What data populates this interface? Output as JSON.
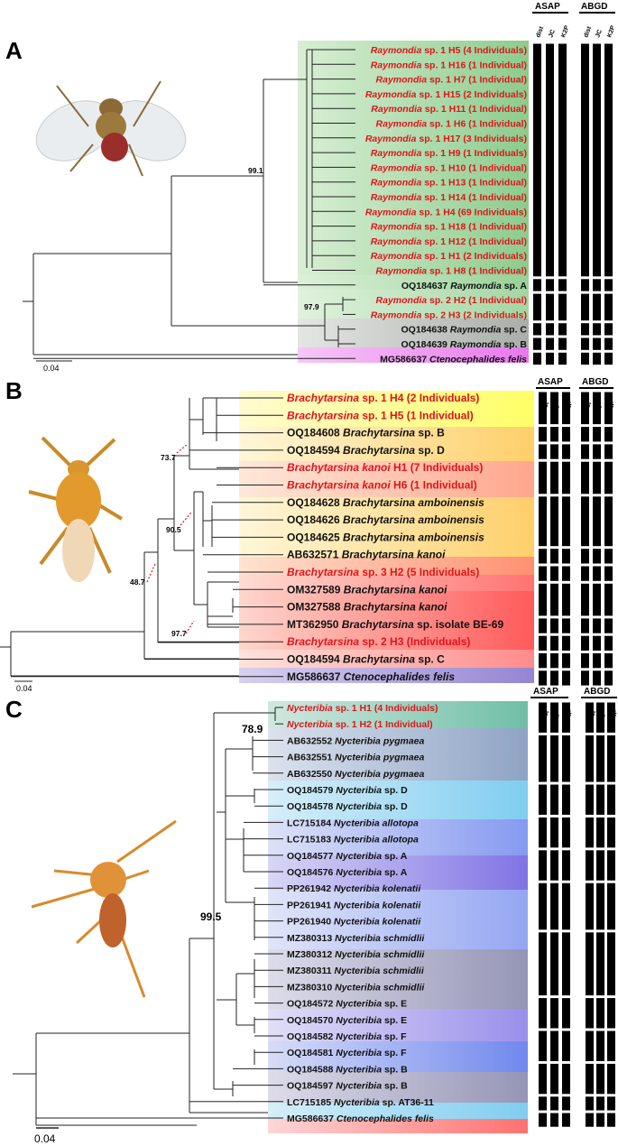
{
  "panels": [
    {
      "id": "A",
      "label": "A",
      "image_name": "raymondia-specimen",
      "method_headers": [
        "ASAP",
        "ABGD"
      ],
      "asap_subheaders": [
        "dist",
        "JC",
        "K2P"
      ],
      "abgd_subheaders": [
        "dist",
        "JC",
        "K2P"
      ],
      "scale_label": "0.04",
      "bootstrap": [
        "99.1",
        "97.9"
      ],
      "tips": [
        {
          "acc": "",
          "genus": "Raymondia",
          "rest": "sp. 1 H5 (4 Individuals)",
          "red": true,
          "italic_all": false
        },
        {
          "acc": "",
          "genus": "Raymondia",
          "rest": "sp. 1 H16 (1 Individual)",
          "red": true,
          "italic_all": false
        },
        {
          "acc": "",
          "genus": "Raymondia",
          "rest": "sp. 1 H7 (1 Individual)",
          "red": true,
          "italic_all": false
        },
        {
          "acc": "",
          "genus": "Raymondia",
          "rest": "sp. 1 H15 (2 Individuals)",
          "red": true,
          "italic_all": false
        },
        {
          "acc": "",
          "genus": "Raymondia",
          "rest": "sp. 1 H11 (1 Individual)",
          "red": true,
          "italic_all": false
        },
        {
          "acc": "",
          "genus": "Raymondia",
          "rest": "sp. 1 H6 (1 Individual)",
          "red": true,
          "italic_all": false
        },
        {
          "acc": "",
          "genus": "Raymondia",
          "rest": "sp. 1 H17 (3 Individuals)",
          "red": true,
          "italic_all": false
        },
        {
          "acc": "",
          "genus": "Raymondia",
          "rest": "sp. 1 H9 (1 Individuals)",
          "red": true,
          "italic_all": false
        },
        {
          "acc": "",
          "genus": "Raymondia",
          "rest": "sp. 1 H10 (1 Individual)",
          "red": true,
          "italic_all": false
        },
        {
          "acc": "",
          "genus": "Raymondia",
          "rest": "sp. 1 H13 (1 Individual)",
          "red": true,
          "italic_all": false
        },
        {
          "acc": "",
          "genus": "Raymondia",
          "rest": "sp. 1 H14 (1 Individual)",
          "red": true,
          "italic_all": false
        },
        {
          "acc": "",
          "genus": "Raymondia",
          "rest": "sp. 1 H4 (69 Individuals)",
          "red": true,
          "italic_all": false
        },
        {
          "acc": "",
          "genus": "Raymondia",
          "rest": "sp. 1 H18 (1 Individual)",
          "red": true,
          "italic_all": false
        },
        {
          "acc": "",
          "genus": "Raymondia",
          "rest": "sp. 1 H12 (1 Individual)",
          "red": true,
          "italic_all": false
        },
        {
          "acc": "",
          "genus": "Raymondia",
          "rest": "sp. 1 H1 (2 Individuals)",
          "red": true,
          "italic_all": false
        },
        {
          "acc": "",
          "genus": "Raymondia",
          "rest": "sp. 1 H8 (1 Individual)",
          "red": true,
          "italic_all": false
        },
        {
          "acc": "OQ184637",
          "genus": "Raymondia",
          "rest": "sp. A",
          "red": false,
          "italic_all": false
        },
        {
          "acc": "",
          "genus": "Raymondia",
          "rest": "sp. 2 H2 (1 Individual)",
          "red": true,
          "italic_all": false
        },
        {
          "acc": "",
          "genus": "Raymondia",
          "rest": "sp. 2 H3 (2 Individuals)",
          "red": true,
          "italic_all": false
        },
        {
          "acc": "OQ184638",
          "genus": "Raymondia",
          "rest": "sp. C",
          "red": false,
          "italic_all": false
        },
        {
          "acc": "OQ184639",
          "genus": "Raymondia",
          "rest": "sp. B",
          "red": false,
          "italic_all": false
        },
        {
          "acc": "MG586637",
          "genus": "Ctenocephalides felis",
          "rest": "",
          "red": false,
          "italic_all": true
        }
      ],
      "colors": {
        "green": "#9fd49f",
        "green2": "#a6d6a0",
        "gray": "#b8bdb8",
        "magenta": "#ee8cf0"
      }
    },
    {
      "id": "B",
      "label": "B",
      "image_name": "brachytarsina-specimen",
      "method_headers": [
        "ASAP",
        "ABGD"
      ],
      "asap_subheaders": [
        "dist",
        "JC",
        "K2P"
      ],
      "abgd_subheaders": [
        "dist",
        "JC",
        "K2P"
      ],
      "scale_label": "0.04",
      "bootstrap": [
        "73.7",
        "90.5",
        "48.7",
        "97.7"
      ],
      "tips": [
        {
          "acc": "",
          "genus": "Brachytarsina",
          "rest": "sp. 1 H4 (2 Individuals)",
          "red": true,
          "italic_all": false
        },
        {
          "acc": "",
          "genus": "Brachytarsina",
          "rest": "sp. 1 H5 (1 Individual)",
          "red": true,
          "italic_all": false
        },
        {
          "acc": "OQ184608",
          "genus": "Brachytarsina",
          "rest": "sp. B",
          "red": false,
          "italic_all": false
        },
        {
          "acc": "OQ184594",
          "genus": "Brachytarsina",
          "rest": "sp. D",
          "red": false,
          "italic_all": false
        },
        {
          "acc": "",
          "genus": "Brachytarsina kanoi",
          "rest": "H1 (7 Individuals)",
          "red": true,
          "italic_all": false
        },
        {
          "acc": "",
          "genus": "Brachytarsina kanoi",
          "rest": "H6 (1 Individual)",
          "red": true,
          "italic_all": false
        },
        {
          "acc": "OQ184628",
          "genus": "Brachytarsina amboinensis",
          "rest": "",
          "red": false,
          "italic_all": true
        },
        {
          "acc": "OQ184626",
          "genus": "Brachytarsina amboinensis",
          "rest": "",
          "red": false,
          "italic_all": true
        },
        {
          "acc": "OQ184625",
          "genus": "Brachytarsina amboinensis",
          "rest": "",
          "red": false,
          "italic_all": true
        },
        {
          "acc": "AB632571",
          "genus": "Brachytarsina kanoi",
          "rest": "",
          "red": false,
          "italic_all": true
        },
        {
          "acc": "",
          "genus": "Brachytarsina",
          "rest": "sp. 3 H2 (5 Individuals)",
          "red": true,
          "italic_all": false
        },
        {
          "acc": "OM327589",
          "genus": "Brachytarsina kanoi",
          "rest": "",
          "red": false,
          "italic_all": true
        },
        {
          "acc": "OM327588",
          "genus": "Brachytarsina kanoi",
          "rest": "",
          "red": false,
          "italic_all": true
        },
        {
          "acc": "MT362950",
          "genus": "Brachytarsina",
          "rest": "sp. isolate BE-69",
          "red": false,
          "italic_all": false
        },
        {
          "acc": "",
          "genus": "Brachytarsina",
          "rest": "sp. 2 H3 (Individuals)",
          "red": true,
          "italic_all": false
        },
        {
          "acc": "OQ184594",
          "genus": "Brachytarsina",
          "rest": "sp. C",
          "red": false,
          "italic_all": false
        },
        {
          "acc": "MG586637",
          "genus": "Ctenocephalides felis",
          "rest": "",
          "red": false,
          "italic_all": true
        }
      ],
      "colors": {
        "yellow": "#ffff80",
        "orange1": "#ffd67a",
        "orange2": "#ffc879",
        "salmon": "#ff9f80",
        "red": "#ff6b6b",
        "purple": "#a89ad8"
      }
    },
    {
      "id": "C",
      "label": "C",
      "image_name": "nycteribia-specimen",
      "method_headers": [
        "ASAP",
        "ABGD"
      ],
      "asap_subheaders": [
        "dist",
        "JC",
        "K2P"
      ],
      "abgd_subheaders": [
        "dist",
        "JC",
        "K2P"
      ],
      "scale_label": "0.04",
      "bootstrap": [
        "78.9",
        "99.5"
      ],
      "tips": [
        {
          "acc": "",
          "genus": "Nycteribia",
          "rest": "sp. 1 H1 (4 Individuals)",
          "red": true,
          "italic_all": false
        },
        {
          "acc": "",
          "genus": "Nycteribia",
          "rest": "sp. 1 H2 (1 Individual)",
          "red": true,
          "italic_all": false
        },
        {
          "acc": "AB632552",
          "genus": "Nycteribia pygmaea",
          "rest": "",
          "red": false,
          "italic_all": true
        },
        {
          "acc": "AB632551",
          "genus": "Nycteribia pygmaea",
          "rest": "",
          "red": false,
          "italic_all": true
        },
        {
          "acc": "AB632550",
          "genus": "Nycteribia pygmaea",
          "rest": "",
          "red": false,
          "italic_all": true
        },
        {
          "acc": "OQ184579",
          "genus": "Nycteribia",
          "rest": "sp. D",
          "red": false,
          "italic_all": false
        },
        {
          "acc": "OQ184578",
          "genus": "Nycteribia",
          "rest": "sp. D",
          "red": false,
          "italic_all": false
        },
        {
          "acc": "LC715184",
          "genus": "Nycteribia allotopa",
          "rest": "",
          "red": false,
          "italic_all": true
        },
        {
          "acc": "LC715183",
          "genus": "Nycteribia allotopa",
          "rest": "",
          "red": false,
          "italic_all": true
        },
        {
          "acc": "OQ184577",
          "genus": "Nycteribia",
          "rest": "sp. A",
          "red": false,
          "italic_all": false
        },
        {
          "acc": "OQ184576",
          "genus": "Nycteribia",
          "rest": "sp. A",
          "red": false,
          "italic_all": false
        },
        {
          "acc": "PP261942",
          "genus": "Nycteribia kolenatii",
          "rest": "",
          "red": false,
          "italic_all": true
        },
        {
          "acc": "PP261941",
          "genus": "Nycteribia kolenatii",
          "rest": "",
          "red": false,
          "italic_all": true
        },
        {
          "acc": "PP261940",
          "genus": "Nycteribia kolenatii",
          "rest": "",
          "red": false,
          "italic_all": true
        },
        {
          "acc": "MZ380313",
          "genus": "Nycteribia schmidlii",
          "rest": "",
          "red": false,
          "italic_all": true
        },
        {
          "acc": "MZ380312",
          "genus": "Nycteribia schmidlii",
          "rest": "",
          "red": false,
          "italic_all": true
        },
        {
          "acc": "MZ380311",
          "genus": "Nycteribia schmidlii",
          "rest": "",
          "red": false,
          "italic_all": true
        },
        {
          "acc": "MZ380310",
          "genus": "Nycteribia schmidlii",
          "rest": "",
          "red": false,
          "italic_all": true
        },
        {
          "acc": "OQ184572",
          "genus": "Nycteribia",
          "rest": "sp. E",
          "red": false,
          "italic_all": false
        },
        {
          "acc": "OQ184570",
          "genus": "Nycteribia",
          "rest": "sp. E",
          "red": false,
          "italic_all": false
        },
        {
          "acc": "OQ184582",
          "genus": "Nycteribia",
          "rest": "sp. F",
          "red": false,
          "italic_all": false
        },
        {
          "acc": "OQ184581",
          "genus": "Nycteribia",
          "rest": "sp. F",
          "red": false,
          "italic_all": false
        },
        {
          "acc": "OQ184588",
          "genus": "Nycteribia",
          "rest": "sp. B",
          "red": false,
          "italic_all": false
        },
        {
          "acc": "OQ184597",
          "genus": "Nycteribia",
          "rest": "sp. B",
          "red": false,
          "italic_all": false
        },
        {
          "acc": "LC715185",
          "genus": "Nycteribia",
          "rest": "sp. AT36-11",
          "red": false,
          "italic_all": false
        },
        {
          "acc": "MG586637",
          "genus": "Ctenocephalides felis",
          "rest": "",
          "red": false,
          "italic_all": true
        }
      ],
      "colors": {
        "teal": "#8fcfb8",
        "slate": "#9fb4d0",
        "sky": "#9fd7f0",
        "violet": "#9a8fe8",
        "blue": "#8c9cf0",
        "greyblue": "#a9a9c8",
        "pink": "#ff8f8f"
      }
    }
  ],
  "style": {
    "red_text": "#e0141c",
    "black_text": "#111111",
    "bar_color": "#000000",
    "branch_color": "#222222"
  }
}
